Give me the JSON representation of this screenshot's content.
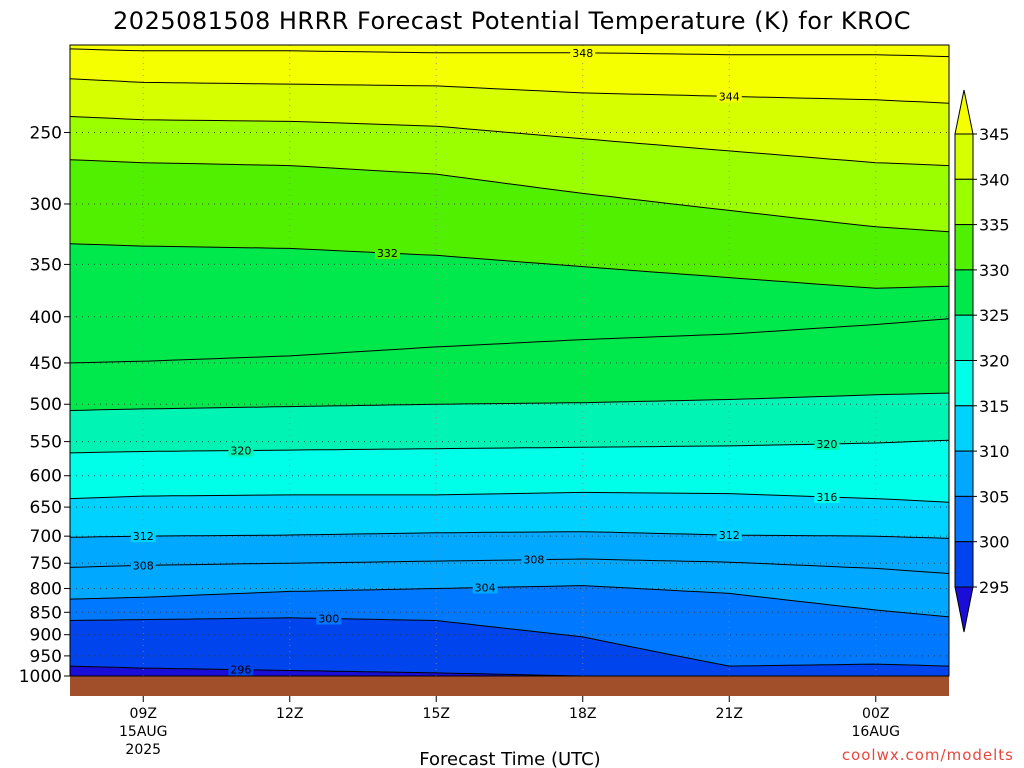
{
  "title": "2025081508 HRRR Forecast Potential Temperature (K) for KROC",
  "xlabel": "Forecast Time (UTC)",
  "credit": "coolwx.com/modelts",
  "chart_data": {
    "type": "contour-filled time-height cross section",
    "variable": "Potential Temperature",
    "units": "K",
    "y_axis": {
      "ticks": [
        250,
        300,
        350,
        400,
        450,
        500,
        550,
        600,
        650,
        700,
        750,
        800,
        850,
        900,
        950,
        1000
      ],
      "range": [
        200,
        1000
      ],
      "scale": "log"
    },
    "x_axis": {
      "ticks": [
        {
          "label": "09Z",
          "sub": [
            "15AUG",
            "2025"
          ]
        },
        {
          "label": "12Z",
          "sub": []
        },
        {
          "label": "15Z",
          "sub": []
        },
        {
          "label": "18Z",
          "sub": []
        },
        {
          "label": "21Z",
          "sub": []
        },
        {
          "label": "00Z",
          "sub": [
            "16AUG"
          ]
        }
      ],
      "range_hours": [
        7.5,
        25.5
      ]
    },
    "colorbar": {
      "labels": [
        "345",
        "340",
        "335",
        "330",
        "325",
        "320",
        "315",
        "310",
        "305",
        "300",
        "295"
      ],
      "colors": [
        "#f5ff00",
        "#d6ff00",
        "#9cff00",
        "#50f000",
        "#00e94c",
        "#00f5b4",
        "#00ffe8",
        "#00d2ff",
        "#00a8ff",
        "#0078ff",
        "#0044ee",
        "#1a0dd8"
      ]
    },
    "ground_color": "#a04f2a",
    "times": [
      7.5,
      9,
      12,
      15,
      18,
      21,
      24,
      25.5
    ],
    "contours": [
      {
        "level": 296,
        "p": [
          975,
          980,
          986,
          992,
          1000,
          1000,
          1000,
          1000
        ]
      },
      {
        "level": 300,
        "p": [
          868,
          866,
          862,
          868,
          905,
          975,
          970,
          975
        ]
      },
      {
        "level": 304,
        "p": [
          822,
          818,
          806,
          800,
          794,
          810,
          845,
          860
        ]
      },
      {
        "level": 308,
        "p": [
          758,
          754,
          750,
          746,
          742,
          748,
          760,
          770
        ]
      },
      {
        "level": 312,
        "p": [
          702,
          700,
          698,
          694,
          692,
          698,
          700,
          704
        ]
      },
      {
        "level": 316,
        "p": [
          636,
          632,
          630,
          630,
          626,
          628,
          636,
          642
        ]
      },
      {
        "level": 320,
        "p": [
          566,
          564,
          562,
          560,
          558,
          556,
          552,
          548
        ]
      },
      {
        "level": 324,
        "p": [
          508,
          506,
          503,
          500,
          498,
          494,
          488,
          486
        ]
      },
      {
        "level": 328,
        "p": [
          450,
          448,
          442,
          432,
          424,
          418,
          408,
          402
        ]
      },
      {
        "level": 332,
        "p": [
          332,
          334,
          336,
          342,
          352,
          362,
          372,
          370
        ]
      },
      {
        "level": 336,
        "p": [
          268,
          270,
          272,
          278,
          292,
          305,
          318,
          322
        ]
      },
      {
        "level": 340,
        "p": [
          240,
          242,
          243,
          246,
          254,
          262,
          270,
          272
        ]
      },
      {
        "level": 344,
        "p": [
          218,
          220,
          221,
          222,
          226,
          228,
          230,
          232
        ]
      },
      {
        "level": 348,
        "p": [
          202,
          203,
          203,
          204,
          204,
          205,
          205,
          206
        ]
      }
    ],
    "contour_labels": [
      "348",
      "344",
      "332",
      "320",
      "320",
      "316",
      "312",
      "312",
      "308",
      "308",
      "304",
      "300",
      "296"
    ],
    "grid": "dotted"
  }
}
